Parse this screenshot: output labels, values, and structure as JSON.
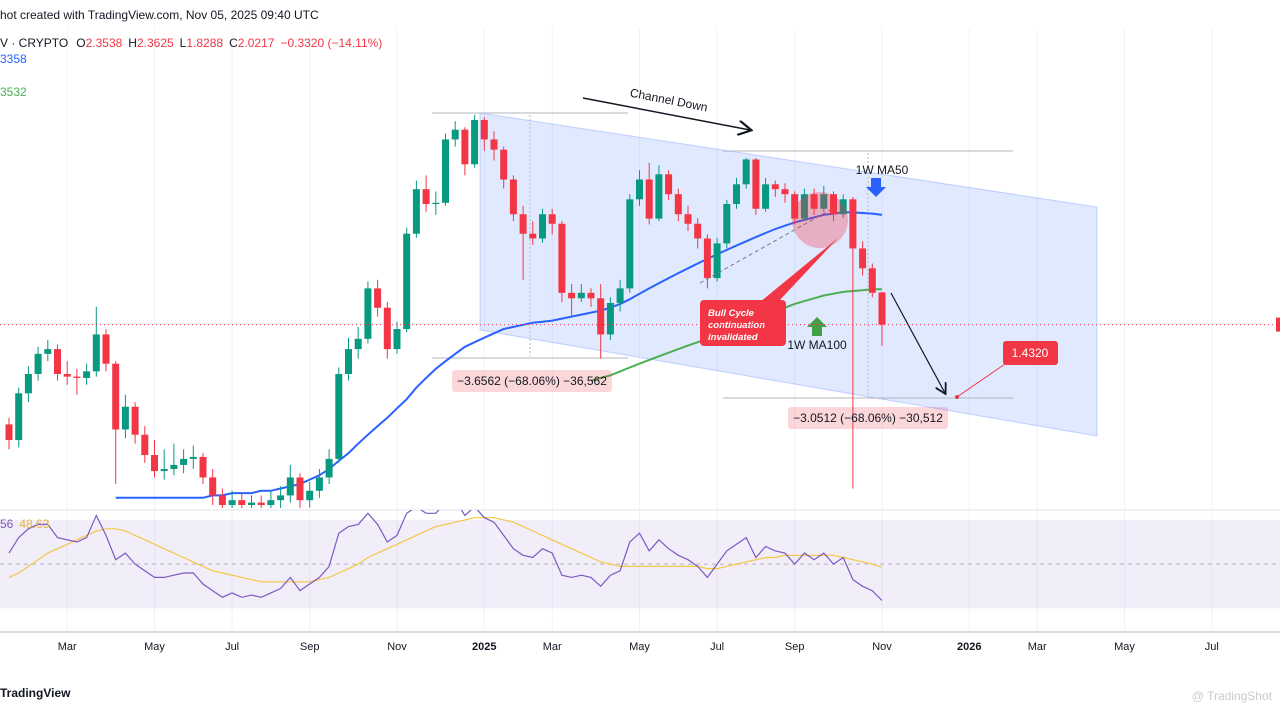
{
  "header": {
    "watermark_top": "hot created with TradingView.com, Nov 05, 2025 09:40 UTC",
    "symbol": "V · CRYPTO",
    "open_label": "O",
    "high_label": "H",
    "low_label": "L",
    "close_label": "C",
    "change": "−0.3320 (−14.11%)",
    "ma50_label": "3358",
    "ma100_label": "3532",
    "rsi_label": "56"
  },
  "chart_data": {
    "type": "candlestick",
    "log_scale": true,
    "ylim": [
      0.84,
      8.24
    ],
    "up_color": "#089981",
    "down_color": "#f23645",
    "categories": [
      null,
      null,
      null,
      null,
      null,
      null,
      "Mar",
      null,
      null,
      null,
      null,
      null,
      null,
      null,
      null,
      "May",
      null,
      null,
      null,
      null,
      null,
      null,
      null,
      "Jul",
      null,
      null,
      null,
      null,
      null,
      null,
      null,
      "Sep",
      null,
      null,
      null,
      null,
      null,
      null,
      null,
      null,
      "Nov",
      null,
      null,
      null,
      null,
      null,
      null,
      null,
      null,
      "2025",
      null,
      null,
      null,
      null,
      null,
      null,
      "Mar",
      null,
      null,
      null,
      null,
      null,
      null,
      null,
      null,
      "May",
      null,
      null,
      null,
      null,
      null,
      null,
      null,
      "Jul",
      null,
      null,
      null,
      null,
      null,
      null,
      null,
      "Sep",
      null,
      null,
      null,
      null,
      null,
      null,
      null,
      null,
      "Nov",
      null,
      null,
      null,
      null,
      null,
      null,
      null,
      null,
      "2026",
      null,
      null,
      null,
      null,
      null,
      null,
      "Mar",
      null,
      null,
      null,
      null,
      null,
      null,
      null,
      null,
      "May",
      null,
      null,
      null,
      null,
      null,
      null,
      null,
      null,
      "Jul",
      null,
      null,
      null,
      null,
      null,
      null
    ],
    "open": [
      1.26,
      1.17,
      1.46,
      1.6,
      1.76,
      1.8,
      1.6,
      1.58,
      1.57,
      1.62,
      1.93,
      1.68,
      1.23,
      1.37,
      1.2,
      1.09,
      1.01,
      1.02,
      1.04,
      1.07,
      1.08,
      0.98,
      0.9,
      0.86,
      0.88,
      0.86,
      0.87,
      0.86,
      0.88,
      0.9,
      0.98,
      0.88,
      0.92,
      0.98,
      1.07,
      1.6,
      1.8,
      1.89,
      2.4,
      2.19,
      1.8,
      1.98,
      3.11,
      3.84,
      3.58,
      3.6,
      4.86,
      5.09,
      4.32,
      5.33,
      4.86,
      4.63,
      4.02,
      3.41,
      3.11,
      3.04,
      3.41,
      3.26,
      2.35,
      2.29,
      2.35,
      2.29,
      1.93,
      2.24,
      2.4,
      3.66,
      4.02,
      3.34,
      4.12,
      3.75,
      3.41,
      3.26,
      3.04,
      2.52,
      2.97,
      3.58,
      3.93,
      4.42,
      3.5,
      3.93,
      3.84,
      3.75,
      3.34,
      3.75,
      3.5,
      3.75,
      3.41,
      3.66,
      2.9,
      2.64,
      2.3538,
      null,
      null,
      null,
      null,
      null,
      null,
      null,
      null,
      null,
      null,
      null,
      null,
      null,
      null,
      null,
      null,
      null,
      null,
      null,
      null,
      null,
      null,
      null,
      null,
      null,
      null,
      null,
      null,
      null,
      null,
      null,
      null,
      null,
      null,
      null,
      null,
      null,
      null,
      null,
      null
    ],
    "high": [
      1.3,
      1.5,
      1.66,
      1.82,
      1.88,
      1.84,
      1.7,
      1.64,
      1.68,
      2.2,
      1.98,
      1.7,
      1.45,
      1.4,
      1.25,
      1.17,
      1.12,
      1.15,
      1.12,
      1.14,
      1.1,
      1.02,
      0.93,
      0.92,
      0.91,
      0.9,
      0.9,
      0.92,
      0.94,
      1.04,
      1.0,
      0.96,
      1.02,
      1.12,
      1.65,
      1.9,
      2.0,
      2.48,
      2.5,
      2.25,
      2.05,
      3.2,
      4.0,
      4.1,
      3.8,
      5.0,
      5.3,
      5.15,
      5.46,
      5.4,
      5.05,
      4.7,
      4.1,
      3.55,
      3.3,
      3.5,
      3.5,
      3.3,
      2.45,
      2.45,
      2.4,
      2.45,
      2.3,
      2.5,
      3.75,
      4.2,
      4.35,
      4.3,
      4.2,
      3.85,
      3.55,
      3.35,
      3.1,
      3.05,
      3.65,
      4.05,
      4.45,
      4.45,
      4.05,
      4.0,
      3.95,
      3.8,
      3.85,
      3.85,
      3.9,
      3.8,
      3.75,
      3.7,
      3.0,
      2.7,
      2.3625,
      null,
      null,
      null,
      null,
      null,
      null,
      null,
      null,
      null,
      null,
      null,
      null,
      null,
      null,
      null,
      null,
      null,
      null,
      null,
      null,
      null,
      null,
      null,
      null,
      null,
      null,
      null,
      null,
      null,
      null,
      null,
      null,
      null,
      null,
      null,
      null,
      null,
      null,
      null,
      null
    ],
    "low": [
      1.12,
      1.13,
      1.4,
      1.55,
      1.7,
      1.55,
      1.52,
      1.45,
      1.52,
      1.58,
      1.62,
      0.95,
      1.18,
      1.15,
      1.05,
      0.98,
      0.97,
      0.99,
      1.0,
      1.02,
      0.95,
      0.86,
      0.82,
      0.83,
      0.82,
      0.82,
      0.81,
      0.82,
      0.84,
      0.87,
      0.84,
      0.85,
      0.89,
      0.95,
      1.05,
      1.55,
      1.72,
      1.85,
      2.1,
      1.72,
      1.76,
      1.95,
      3.05,
      3.45,
      3.4,
      3.55,
      4.7,
      4.1,
      4.25,
      4.6,
      4.4,
      3.85,
      3.3,
      2.5,
      2.95,
      2.98,
      3.1,
      2.25,
      2.1,
      2.25,
      2.2,
      1.72,
      1.88,
      2.15,
      2.35,
      3.55,
      3.25,
      3.3,
      3.65,
      3.3,
      3.15,
      2.9,
      2.4,
      2.48,
      2.9,
      3.5,
      3.85,
      3.4,
      3.45,
      3.7,
      3.6,
      3.25,
      3.3,
      3.4,
      3.45,
      3.3,
      3.35,
      0.93,
      2.55,
      2.3,
      1.8288,
      null,
      null,
      null,
      null,
      null,
      null,
      null,
      null,
      null,
      null,
      null,
      null,
      null,
      null,
      null,
      null,
      null,
      null,
      null,
      null,
      null,
      null,
      null,
      null,
      null,
      null,
      null,
      null,
      null,
      null,
      null,
      null,
      null,
      null,
      null,
      null,
      null,
      null,
      null,
      null
    ],
    "close": [
      1.17,
      1.46,
      1.6,
      1.76,
      1.8,
      1.6,
      1.58,
      1.57,
      1.62,
      1.93,
      1.68,
      1.23,
      1.37,
      1.2,
      1.09,
      1.01,
      1.02,
      1.04,
      1.07,
      1.08,
      0.98,
      0.9,
      0.86,
      0.88,
      0.86,
      0.87,
      0.86,
      0.88,
      0.9,
      0.98,
      0.88,
      0.92,
      0.98,
      1.07,
      1.6,
      1.8,
      1.89,
      2.4,
      2.19,
      1.8,
      1.98,
      3.11,
      3.84,
      3.58,
      3.6,
      4.86,
      5.09,
      4.32,
      5.33,
      4.86,
      4.63,
      4.02,
      3.41,
      3.11,
      3.04,
      3.41,
      3.26,
      2.35,
      2.29,
      2.35,
      2.29,
      1.93,
      2.24,
      2.4,
      3.66,
      4.02,
      3.34,
      4.12,
      3.75,
      3.41,
      3.26,
      3.04,
      2.52,
      2.97,
      3.58,
      3.93,
      4.42,
      3.5,
      3.93,
      3.84,
      3.75,
      3.34,
      3.75,
      3.5,
      3.75,
      3.41,
      3.66,
      2.9,
      2.64,
      2.35,
      2.0217,
      null,
      null,
      null,
      null,
      null,
      null,
      null,
      null,
      null,
      null,
      null,
      null,
      null,
      null,
      null,
      null,
      null,
      null,
      null,
      null,
      null,
      null,
      null,
      null,
      null,
      null,
      null,
      null,
      null,
      null,
      null,
      null,
      null,
      null,
      null,
      null,
      null,
      null,
      null,
      null
    ],
    "ma50": {
      "color": "#2962ff",
      "values": [
        null,
        null,
        null,
        null,
        null,
        null,
        null,
        null,
        null,
        null,
        null,
        0.89,
        0.89,
        0.89,
        0.89,
        0.89,
        0.89,
        0.89,
        0.89,
        0.89,
        0.89,
        0.9,
        0.9,
        0.91,
        0.91,
        0.91,
        0.92,
        0.92,
        0.93,
        0.94,
        0.95,
        0.97,
        0.99,
        1.02,
        1.06,
        1.1,
        1.15,
        1.2,
        1.25,
        1.3,
        1.36,
        1.42,
        1.5,
        1.57,
        1.64,
        1.7,
        1.76,
        1.82,
        1.86,
        1.9,
        1.94,
        1.98,
        2.0,
        2.02,
        2.04,
        2.05,
        2.06,
        2.08,
        2.1,
        2.12,
        2.14,
        2.16,
        2.19,
        2.23,
        2.28,
        2.34,
        2.4,
        2.46,
        2.52,
        2.58,
        2.64,
        2.7,
        2.76,
        2.82,
        2.88,
        2.94,
        3.0,
        3.06,
        3.12,
        3.18,
        3.23,
        3.28,
        3.32,
        3.36,
        3.4,
        3.42,
        3.44,
        3.44,
        3.43,
        3.42,
        3.4,
        null,
        null,
        null,
        null,
        null,
        null,
        null,
        null,
        null,
        null,
        null,
        null,
        null,
        null,
        null,
        null,
        null,
        null,
        null,
        null,
        null,
        null,
        null,
        null,
        null,
        null,
        null,
        null,
        null,
        null,
        null,
        null,
        null,
        null,
        null,
        null,
        null,
        null,
        null,
        null
      ]
    },
    "ma100": {
      "color": "#4caf50",
      "values": [
        null,
        null,
        null,
        null,
        null,
        null,
        null,
        null,
        null,
        null,
        null,
        null,
        null,
        null,
        null,
        null,
        null,
        null,
        null,
        null,
        null,
        null,
        null,
        null,
        null,
        null,
        null,
        null,
        null,
        null,
        null,
        null,
        null,
        null,
        null,
        null,
        null,
        null,
        null,
        null,
        null,
        null,
        null,
        null,
        null,
        null,
        null,
        null,
        null,
        null,
        null,
        null,
        null,
        null,
        null,
        null,
        null,
        null,
        null,
        null,
        1.55,
        1.57,
        1.59,
        1.62,
        1.65,
        1.68,
        1.71,
        1.74,
        1.77,
        1.8,
        1.83,
        1.86,
        1.89,
        1.92,
        1.95,
        1.99,
        2.03,
        2.07,
        2.11,
        2.15,
        2.19,
        2.23,
        2.26,
        2.29,
        2.32,
        2.34,
        2.36,
        2.37,
        2.38,
        2.39,
        2.39,
        null,
        null,
        null,
        null,
        null,
        null,
        null,
        null,
        null,
        null,
        null,
        null,
        null,
        null,
        null,
        null,
        null,
        null,
        null,
        null,
        null,
        null,
        null,
        null,
        null,
        null,
        null,
        null,
        null,
        null,
        null,
        null,
        null,
        null,
        null,
        null,
        null,
        null,
        null,
        null
      ]
    },
    "rsi": {
      "color": "#7e57c2",
      "ma_color": "#f2c744",
      "ylim": [
        19.3,
        74.5
      ],
      "band": [
        30,
        70
      ],
      "mid": 50,
      "values": [
        55,
        62,
        66,
        68,
        68,
        62,
        61,
        60,
        62,
        72,
        63,
        52,
        55,
        50,
        47,
        44,
        44,
        45,
        46,
        46,
        41,
        38,
        35,
        37,
        35,
        36,
        35,
        37,
        39,
        44,
        38,
        41,
        44,
        49,
        64,
        67,
        68,
        73,
        68,
        60,
        63,
        73,
        76,
        73,
        73,
        78,
        79,
        72,
        76,
        71,
        69,
        63,
        57,
        54,
        53,
        57,
        55,
        45,
        44,
        45,
        44,
        40,
        45,
        47,
        60,
        64,
        56,
        61,
        57,
        54,
        52,
        49,
        44,
        50,
        56,
        59,
        62,
        53,
        58,
        56,
        55,
        50,
        55,
        52,
        55,
        50,
        53,
        43,
        40,
        38,
        33.56,
        null,
        null,
        null,
        null,
        null,
        null,
        null,
        null,
        null,
        null,
        null,
        null,
        null,
        null,
        null,
        null,
        null,
        null,
        null,
        null,
        null,
        null,
        null,
        null,
        null,
        null,
        null,
        null,
        null,
        null,
        null,
        null,
        null,
        null,
        null,
        null,
        null,
        null,
        null,
        null
      ],
      "ma_values": [
        44,
        46,
        49,
        52,
        55,
        57,
        59,
        61,
        63,
        65,
        66,
        66,
        65,
        63,
        61,
        59,
        57,
        55,
        53,
        51,
        49,
        47,
        46,
        45,
        44,
        43,
        42,
        42,
        42,
        42,
        42,
        42,
        43,
        44,
        46,
        48,
        50,
        53,
        55,
        57,
        59,
        61,
        63,
        65,
        67,
        68,
        69,
        70,
        71,
        71,
        71,
        70,
        69,
        67,
        65,
        63,
        61,
        59,
        57,
        55,
        53,
        51,
        50,
        49,
        49,
        49,
        49,
        49,
        49,
        49,
        49,
        49,
        48,
        48,
        49,
        50,
        51,
        52,
        53,
        53,
        54,
        54,
        54,
        54,
        54,
        54,
        53,
        52,
        51,
        50,
        48.63,
        null,
        null,
        null,
        null,
        null,
        null,
        null,
        null,
        null,
        null,
        null,
        null,
        null,
        null,
        null,
        null,
        null,
        null,
        null,
        null,
        null,
        null,
        null,
        null,
        null,
        null,
        null,
        null,
        null,
        null,
        null,
        null,
        null,
        null,
        null,
        null,
        null,
        null,
        null,
        null
      ]
    },
    "annotations": {
      "channel": "Channel Down",
      "ma50": "1W MA50",
      "ma100": "1W MA100",
      "callout": [
        "Bull Cycle",
        "continuation",
        "invalidated"
      ],
      "target": "1.4320",
      "measure_left": "−3.6562 (−68.06%) −36,562",
      "measure_right": "−3.0512 (−68.06%) −30,512"
    }
  },
  "footer": {
    "logo": "TradingView",
    "watermark": "@ TradingShot"
  }
}
